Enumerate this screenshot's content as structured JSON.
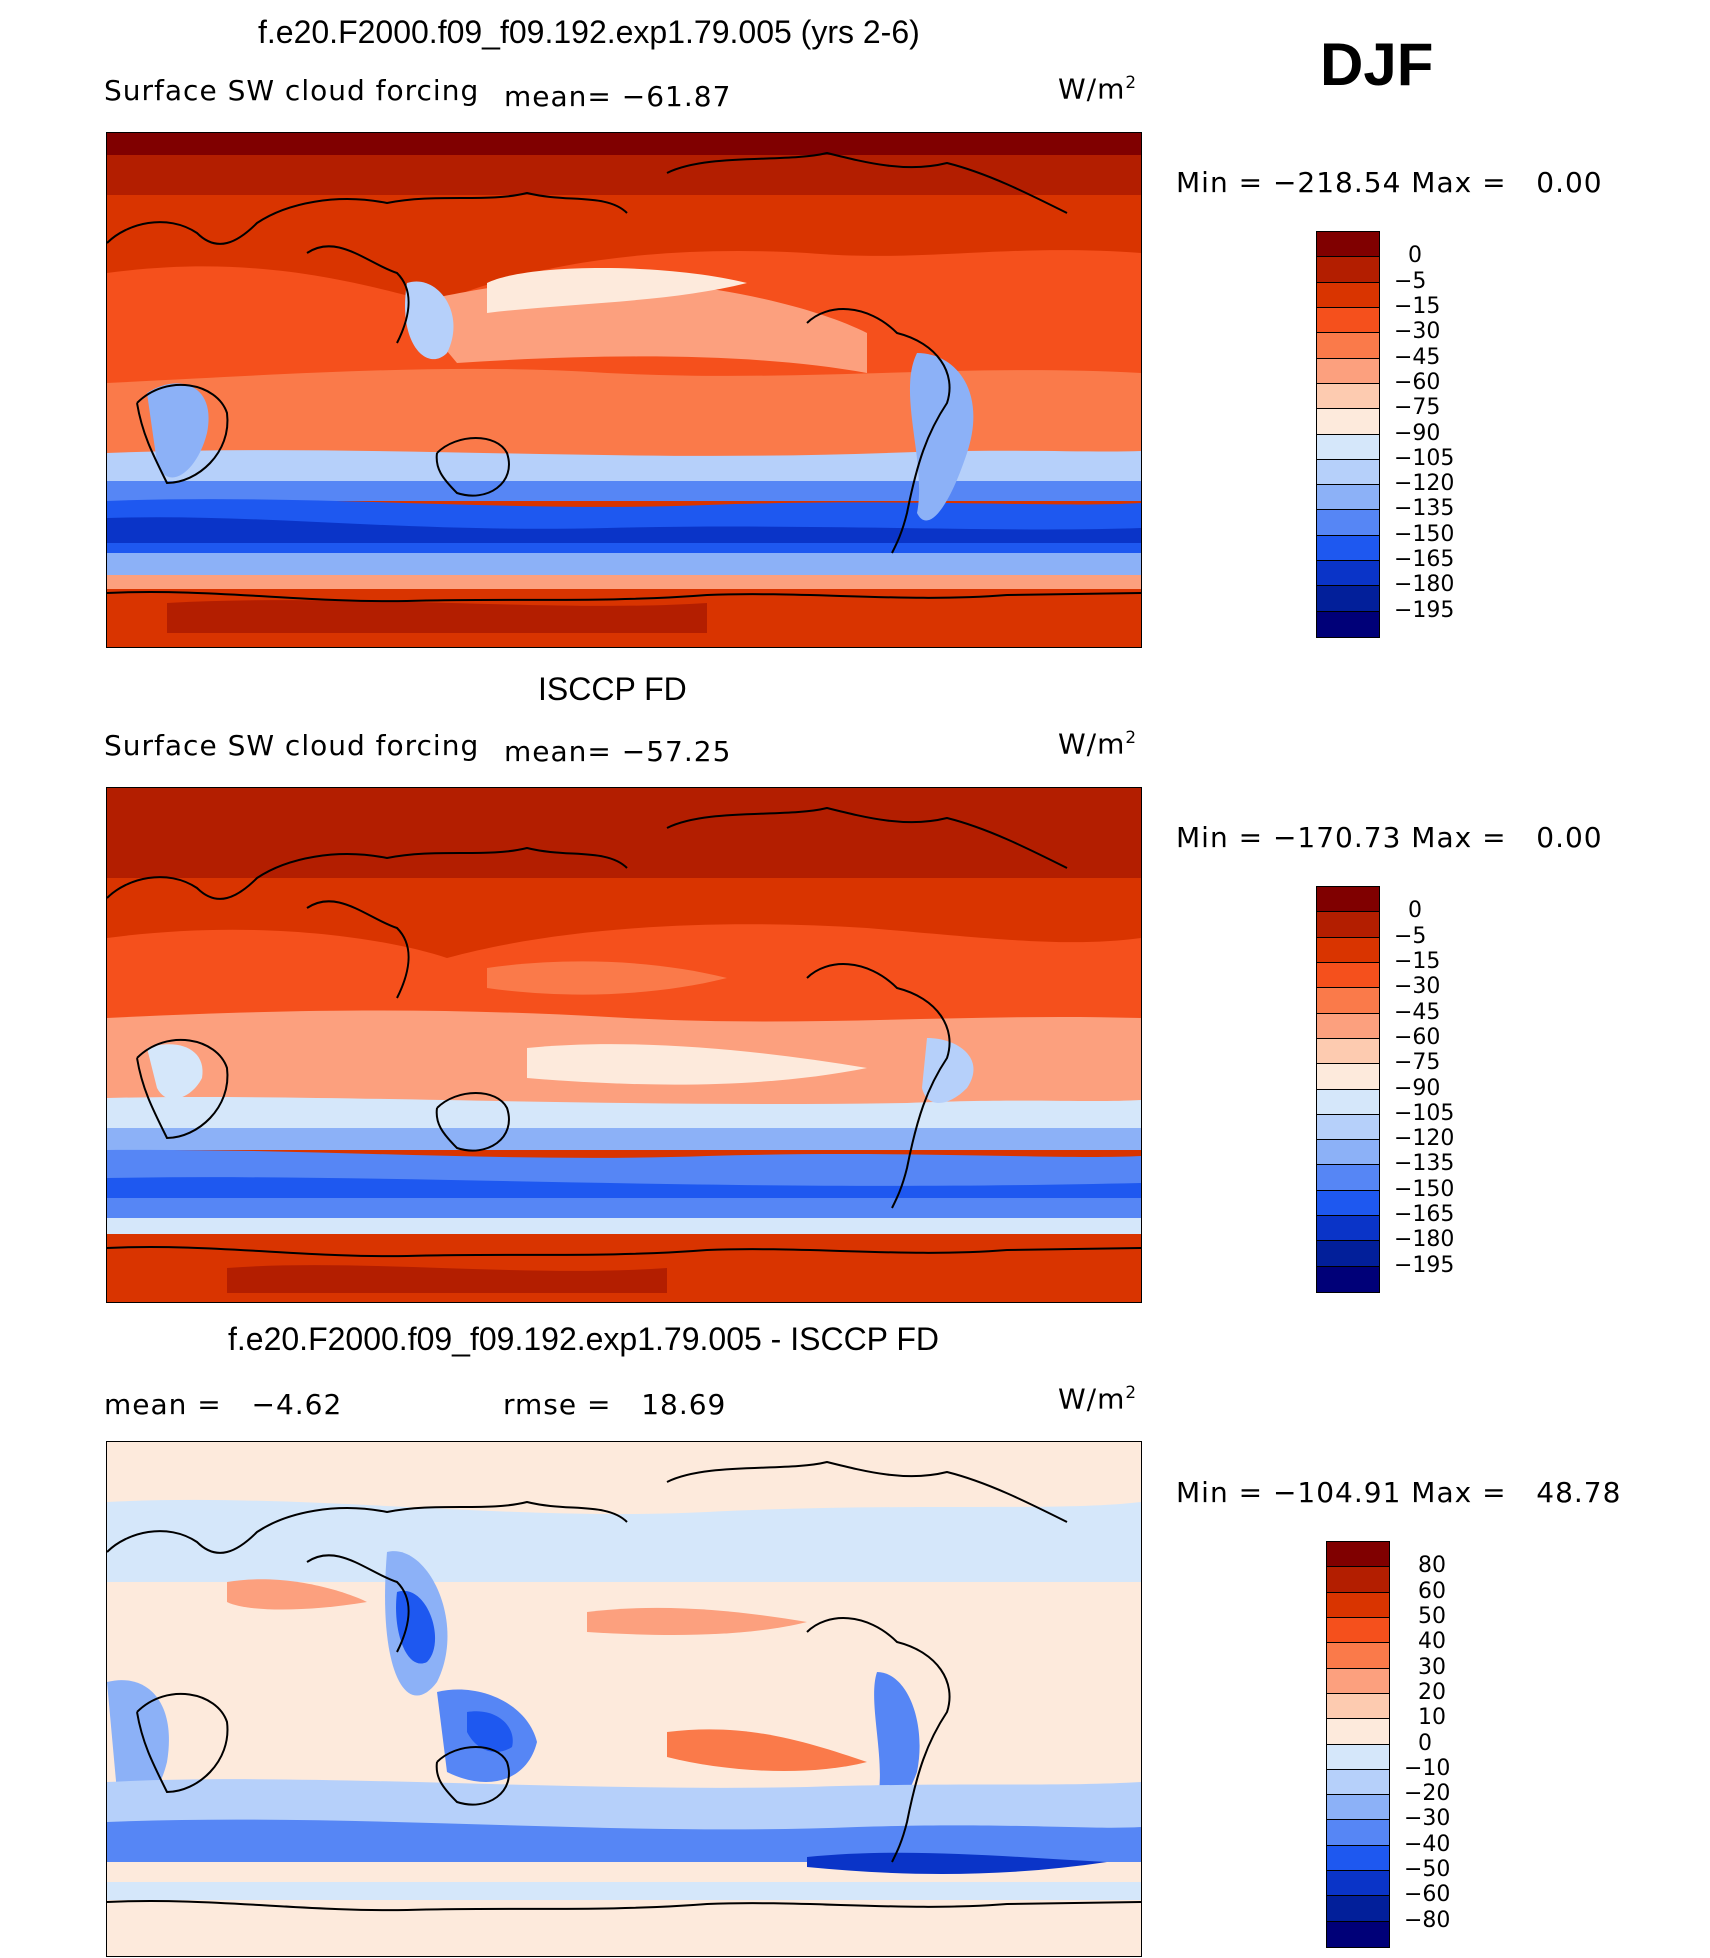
{
  "season": "DJF",
  "panels": [
    {
      "title": "f.e20.F2000.f09_f09.192.exp1.79.005 (yrs 2-6)",
      "variable": "Surface SW cloud forcing",
      "mean_label": "mean=",
      "mean_value": "−61.87",
      "units": "W/m",
      "units_exp": "2",
      "min_label": "Min",
      "min_value": "−218.54",
      "max_label": "Max",
      "max_value": "0.00",
      "levels": [
        "0",
        "−5",
        "−15",
        "−30",
        "−45",
        "−60",
        "−75",
        "−90",
        "−105",
        "−120",
        "−135",
        "−150",
        "−165",
        "−180",
        "−195"
      ],
      "colors": [
        "#800000",
        "#b31e00",
        "#d93400",
        "#f5501c",
        "#fa7a4a",
        "#fca07e",
        "#fdcbb0",
        "#fdeadc",
        "#d5e7fa",
        "#b6d0fa",
        "#8cb1f7",
        "#5686f5",
        "#1e58f0",
        "#0a34c8",
        "#021f9a",
        "#000078"
      ]
    },
    {
      "title": "ISCCP FD",
      "variable": "Surface SW cloud forcing",
      "mean_label": "mean=",
      "mean_value": "−57.25",
      "units": "W/m",
      "units_exp": "2",
      "min_label": "Min",
      "min_value": "−170.73",
      "max_label": "Max",
      "max_value": "0.00",
      "levels": [
        "0",
        "−5",
        "−15",
        "−30",
        "−45",
        "−60",
        "−75",
        "−90",
        "−105",
        "−120",
        "−135",
        "−150",
        "−165",
        "−180",
        "−195"
      ],
      "colors": [
        "#800000",
        "#b31e00",
        "#d93400",
        "#f5501c",
        "#fa7a4a",
        "#fca07e",
        "#fdcbb0",
        "#fdeadc",
        "#d5e7fa",
        "#b6d0fa",
        "#8cb1f7",
        "#5686f5",
        "#1e58f0",
        "#0a34c8",
        "#021f9a",
        "#000078"
      ]
    },
    {
      "title": "f.e20.F2000.f09_f09.192.exp1.79.005 - ISCCP FD",
      "mean_label": "mean =",
      "mean_value": "−4.62",
      "rmse_label": "rmse =",
      "rmse_value": "18.69",
      "units": "W/m",
      "units_exp": "2",
      "min_label": "Min",
      "min_value": "−104.91",
      "max_label": "Max",
      "max_value": "48.78",
      "levels": [
        "80",
        "60",
        "50",
        "40",
        "30",
        "20",
        "10",
        "0",
        "−10",
        "−20",
        "−30",
        "−40",
        "−50",
        "−60",
        "−80"
      ],
      "colors": [
        "#800000",
        "#b31e00",
        "#d93400",
        "#f5501c",
        "#fa7a4a",
        "#fca07e",
        "#fdcbb0",
        "#fdeadc",
        "#d5e7fa",
        "#b6d0fa",
        "#8cb1f7",
        "#5686f5",
        "#1e58f0",
        "#0a34c8",
        "#021f9a",
        "#000078"
      ]
    }
  ]
}
